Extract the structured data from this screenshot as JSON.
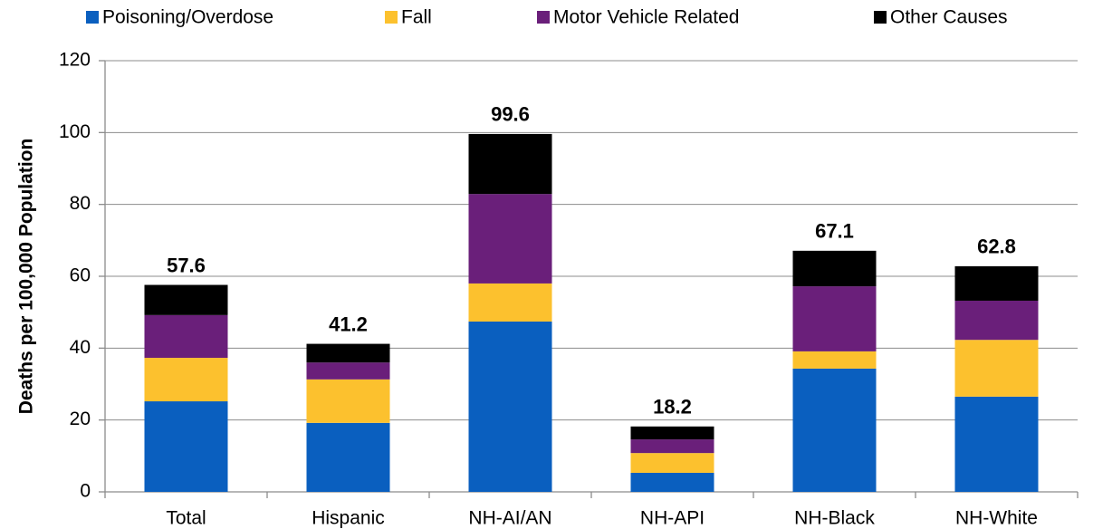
{
  "chart_data": {
    "type": "stacked_bar",
    "y_label": "Deaths per 100,000 Population",
    "categories": [
      "Total",
      "Hispanic",
      "NH-AI/AN",
      "NH-API",
      "NH-Black",
      "NH-White"
    ],
    "series": [
      {
        "name": "Poisoning/Overdose",
        "color": "#0a5fbf",
        "values": [
          25.2,
          19.2,
          47.4,
          5.3,
          34.3,
          26.5
        ]
      },
      {
        "name": "Fall",
        "color": "#fcc12e",
        "values": [
          12.1,
          12.1,
          10.6,
          5.5,
          4.8,
          15.8
        ]
      },
      {
        "name": "Motor Vehicle Related",
        "color": "#6a1f7a",
        "values": [
          11.9,
          4.7,
          24.9,
          3.8,
          18.1,
          10.9
        ]
      },
      {
        "name": "Other Causes",
        "color": "#000000",
        "values": [
          8.4,
          5.2,
          16.7,
          3.6,
          9.9,
          9.6
        ]
      }
    ],
    "totals": [
      57.6,
      41.2,
      99.6,
      18.2,
      67.1,
      62.8
    ],
    "ylim": [
      0,
      120
    ],
    "yticks": [
      0,
      20,
      40,
      60,
      80,
      100,
      120
    ],
    "grid": true,
    "legend": "top"
  }
}
